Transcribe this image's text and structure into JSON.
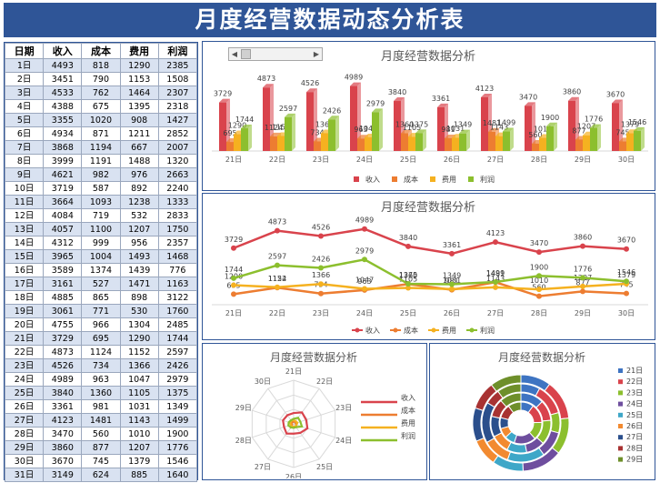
{
  "title": "月度经营数据动态分析表",
  "table": {
    "headers": [
      "日期",
      "收入",
      "成本",
      "费用",
      "利润"
    ],
    "rows": [
      [
        "1日",
        "4493",
        "818",
        "1290",
        "2385"
      ],
      [
        "2日",
        "3451",
        "790",
        "1153",
        "1508"
      ],
      [
        "3日",
        "4533",
        "762",
        "1464",
        "2307"
      ],
      [
        "4日",
        "4388",
        "675",
        "1395",
        "2318"
      ],
      [
        "5日",
        "3355",
        "1020",
        "908",
        "1427"
      ],
      [
        "6日",
        "4934",
        "871",
        "1211",
        "2852"
      ],
      [
        "7日",
        "3868",
        "1194",
        "667",
        "2007"
      ],
      [
        "8日",
        "3999",
        "1191",
        "1488",
        "1320"
      ],
      [
        "9日",
        "4621",
        "982",
        "976",
        "2663"
      ],
      [
        "10日",
        "3719",
        "587",
        "892",
        "2240"
      ],
      [
        "11日",
        "3664",
        "1093",
        "1238",
        "1333"
      ],
      [
        "12日",
        "4084",
        "719",
        "532",
        "2833"
      ],
      [
        "13日",
        "4057",
        "1100",
        "1207",
        "1750"
      ],
      [
        "14日",
        "4312",
        "999",
        "956",
        "2357"
      ],
      [
        "15日",
        "3965",
        "1004",
        "1493",
        "1468"
      ],
      [
        "16日",
        "3589",
        "1374",
        "1439",
        "776"
      ],
      [
        "17日",
        "3161",
        "527",
        "1471",
        "1163"
      ],
      [
        "18日",
        "4885",
        "865",
        "898",
        "3122"
      ],
      [
        "19日",
        "3061",
        "771",
        "530",
        "1760"
      ],
      [
        "20日",
        "4755",
        "966",
        "1304",
        "2485"
      ],
      [
        "21日",
        "3729",
        "695",
        "1290",
        "1744"
      ],
      [
        "22日",
        "4873",
        "1124",
        "1152",
        "2597"
      ],
      [
        "23日",
        "4526",
        "734",
        "1366",
        "2426"
      ],
      [
        "24日",
        "4989",
        "963",
        "1047",
        "2979"
      ],
      [
        "25日",
        "3840",
        "1360",
        "1105",
        "1375"
      ],
      [
        "26日",
        "3361",
        "981",
        "1031",
        "1349"
      ],
      [
        "27日",
        "4123",
        "1481",
        "1143",
        "1499"
      ],
      [
        "28日",
        "3470",
        "560",
        "1010",
        "1900"
      ],
      [
        "29日",
        "3860",
        "877",
        "1207",
        "1776"
      ],
      [
        "30日",
        "3670",
        "745",
        "1379",
        "1546"
      ],
      [
        "31日",
        "3149",
        "624",
        "885",
        "1640"
      ]
    ]
  },
  "chart_data": [
    {
      "type": "bar",
      "title": "月度经营数据分析",
      "categories": [
        "21日",
        "22日",
        "23日",
        "24日",
        "25日",
        "26日",
        "27日",
        "28日",
        "29日",
        "30日"
      ],
      "series": [
        {
          "name": "收入",
          "values": [
            3729,
            4873,
            4526,
            4989,
            3840,
            3361,
            4123,
            3470,
            3860,
            3670
          ]
        },
        {
          "name": "成本",
          "values": [
            695,
            1124,
            734,
            963,
            1360,
            981,
            1481,
            560,
            877,
            745
          ]
        },
        {
          "name": "费用",
          "values": [
            1290,
            1152,
            1366,
            1047,
            1105,
            1031,
            1143,
            1010,
            1207,
            1379
          ]
        },
        {
          "name": "利润",
          "values": [
            1744,
            2597,
            2426,
            2979,
            1375,
            1349,
            1499,
            1900,
            1776,
            1546
          ]
        }
      ],
      "ylim": [
        0,
        5500
      ],
      "legend": "bottom"
    },
    {
      "type": "line",
      "title": "月度经营数据分析",
      "categories": [
        "21日",
        "22日",
        "23日",
        "24日",
        "25日",
        "26日",
        "27日",
        "28日",
        "29日",
        "30日"
      ],
      "series": [
        {
          "name": "收入",
          "values": [
            3729,
            4873,
            4526,
            4989,
            3840,
            3361,
            4123,
            3470,
            3860,
            3670
          ]
        },
        {
          "name": "成本",
          "values": [
            695,
            1124,
            734,
            963,
            1360,
            981,
            1481,
            560,
            877,
            745
          ]
        },
        {
          "name": "费用",
          "values": [
            1290,
            1152,
            1366,
            1047,
            1105,
            1031,
            1143,
            1010,
            1207,
            1379
          ]
        },
        {
          "name": "利润",
          "values": [
            1744,
            2597,
            2426,
            2979,
            1375,
            1349,
            1499,
            1900,
            1776,
            1546
          ]
        }
      ],
      "ylim": [
        0,
        5500
      ],
      "legend": "bottom"
    },
    {
      "type": "radar",
      "title": "月度经营数据分析",
      "categories": [
        "21日",
        "22日",
        "23日",
        "24日",
        "25日",
        "26日",
        "27日",
        "28日",
        "29日",
        "30日"
      ],
      "series": [
        {
          "name": "收入",
          "values": [
            3729,
            4873,
            4526,
            4989,
            3840,
            3361,
            4123,
            3470,
            3860,
            3670
          ]
        },
        {
          "name": "成本",
          "values": [
            695,
            1124,
            734,
            963,
            1360,
            981,
            1481,
            560,
            877,
            745
          ]
        },
        {
          "name": "费用",
          "values": [
            1290,
            1152,
            1366,
            1047,
            1105,
            1031,
            1143,
            1010,
            1207,
            1379
          ]
        },
        {
          "name": "利润",
          "values": [
            1744,
            2597,
            2426,
            2979,
            1375,
            1349,
            1499,
            1900,
            1776,
            1546
          ]
        }
      ],
      "rmax": 15000,
      "legend": "right"
    },
    {
      "type": "doughnut",
      "title": "月度经营数据分析",
      "categories": [
        "21日",
        "22日",
        "23日",
        "24日",
        "25日",
        "26日",
        "27日",
        "28日",
        "29日"
      ],
      "rings": [
        {
          "name": "收入",
          "values": [
            3729,
            4873,
            4526,
            4989,
            3840,
            3361,
            4123,
            3470,
            3860
          ]
        },
        {
          "name": "成本",
          "values": [
            695,
            1124,
            734,
            963,
            1360,
            981,
            1481,
            560,
            877
          ]
        },
        {
          "name": "费用",
          "values": [
            1290,
            1152,
            1366,
            1047,
            1105,
            1031,
            1143,
            1010,
            1207
          ]
        },
        {
          "name": "利润",
          "values": [
            1744,
            2597,
            2426,
            2979,
            1375,
            1349,
            1499,
            1900,
            1776
          ]
        }
      ],
      "legend": "right"
    }
  ],
  "colors": {
    "series": [
      "#d9434c",
      "#ed7d31",
      "#f5b120",
      "#8cbf2e"
    ],
    "slices": [
      "#3e74c2",
      "#d9434c",
      "#8cbf2e",
      "#6e4e9e",
      "#3ea7c8",
      "#f28a30",
      "#2b4f8c",
      "#a83232",
      "#6e8f2a"
    ],
    "title_bar": "#2f5597"
  },
  "icons": {
    "scroll_left": "◀",
    "scroll_right": "▶"
  }
}
